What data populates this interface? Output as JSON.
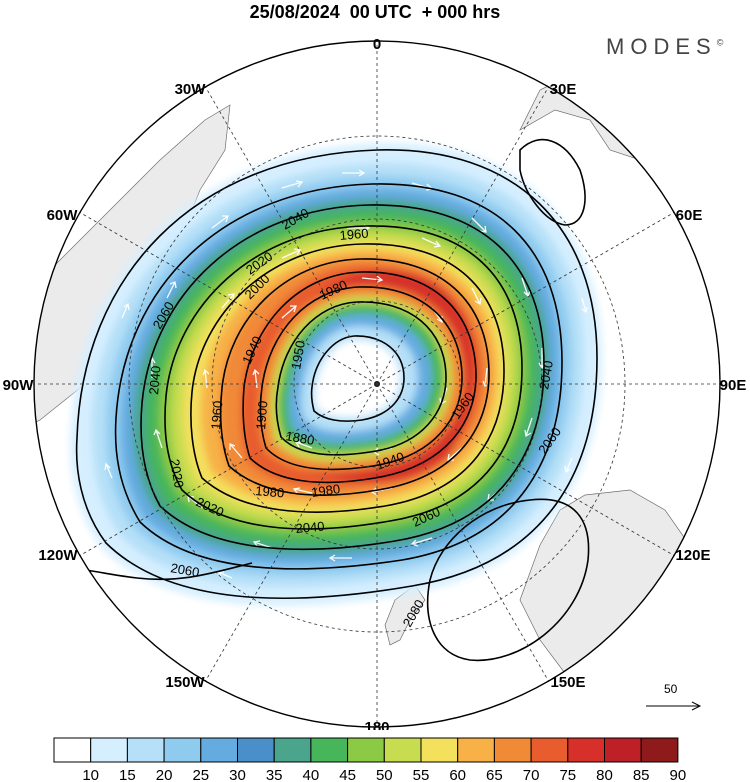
{
  "title": "25/08/2024  00 UTC  + 000 hrs",
  "brand": "MODES",
  "brand_mark": "©",
  "longitude_labels": [
    "0",
    "30E",
    "60E",
    "90E",
    "120E",
    "150E",
    "180",
    "150W",
    "120W",
    "90W",
    "60W",
    "30W"
  ],
  "contour_labels": {
    "h1880": "1880",
    "h1900": "1900",
    "h1920": "1920",
    "h1940": "1940",
    "h1950": "1950",
    "h1960": "1960",
    "h1960b": "1960",
    "h1980": "1980",
    "h1980b": "1980",
    "h1980c": "1980",
    "h2000": "2000",
    "h2020": "2020",
    "h2020b": "2020",
    "h2040": "2040",
    "h2040b": "2040",
    "h2040c": "2040",
    "h2040d": "2040",
    "h2060": "2060",
    "h2060b": "2060",
    "h2060c": "2060",
    "h2060d": "2060",
    "h2080": "2080",
    "h1940b": "1940",
    "h1960c": "1960"
  },
  "reference_vector": {
    "label": "50",
    "icon": "arrow-icon"
  },
  "colorbar": {
    "labels": [
      "10",
      "15",
      "20",
      "25",
      "30",
      "35",
      "40",
      "45",
      "50",
      "55",
      "60",
      "65",
      "70",
      "75",
      "80",
      "85",
      "90"
    ],
    "colors": [
      "#ffffff",
      "#d6efff",
      "#b5e0f8",
      "#8fcbef",
      "#64abe0",
      "#4a8fca",
      "#4aa58c",
      "#47b65a",
      "#8cca45",
      "#c8dc4f",
      "#f3e05d",
      "#f7b146",
      "#f18a37",
      "#e85c2e",
      "#d7302a",
      "#be2027",
      "#8e1a1c"
    ]
  }
}
